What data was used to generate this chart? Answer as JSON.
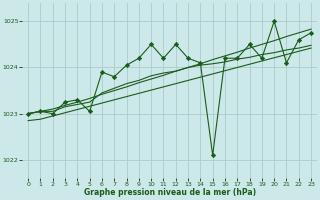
{
  "xlabel": "Graphe pression niveau de la mer (hPa)",
  "background_color": "#cce8e8",
  "grid_color": "#aacccc",
  "line_color": "#1a5c1a",
  "xlim": [
    -0.5,
    23.5
  ],
  "ylim": [
    1021.6,
    1025.4
  ],
  "yticks": [
    1022,
    1023,
    1024,
    1025
  ],
  "xticks": [
    0,
    1,
    2,
    3,
    4,
    5,
    6,
    7,
    8,
    9,
    10,
    11,
    12,
    13,
    14,
    15,
    16,
    17,
    18,
    19,
    20,
    21,
    22,
    23
  ],
  "series_main": [
    1023.0,
    1023.05,
    1023.0,
    1023.25,
    1023.3,
    1023.05,
    1023.9,
    1023.8,
    1024.05,
    1024.2,
    1024.5,
    1024.2,
    1024.5,
    1024.2,
    1024.1,
    1022.1,
    1024.2,
    1024.2,
    1024.5,
    1024.2,
    1025.0,
    1024.1,
    1024.6,
    1024.75
  ],
  "series_smooth": [
    1023.0,
    1023.05,
    1023.05,
    1023.15,
    1023.2,
    1023.25,
    1023.45,
    1023.55,
    1023.65,
    1023.72,
    1023.82,
    1023.88,
    1023.92,
    1024.0,
    1024.05,
    1024.08,
    1024.12,
    1024.18,
    1024.22,
    1024.28,
    1024.32,
    1024.38,
    1024.42,
    1024.48
  ],
  "series_trend_lo": [
    1022.85,
    1022.88,
    1022.95,
    1023.02,
    1023.09,
    1023.16,
    1023.23,
    1023.3,
    1023.37,
    1023.44,
    1023.51,
    1023.58,
    1023.65,
    1023.72,
    1023.79,
    1023.86,
    1023.93,
    1024.0,
    1024.07,
    1024.14,
    1024.21,
    1024.28,
    1024.35,
    1024.42
  ],
  "series_trend_hi": [
    1023.0,
    1023.05,
    1023.1,
    1023.18,
    1023.25,
    1023.33,
    1023.42,
    1023.5,
    1023.58,
    1023.67,
    1023.75,
    1023.83,
    1023.92,
    1024.0,
    1024.08,
    1024.17,
    1024.25,
    1024.33,
    1024.42,
    1024.5,
    1024.58,
    1024.67,
    1024.75,
    1024.83
  ]
}
